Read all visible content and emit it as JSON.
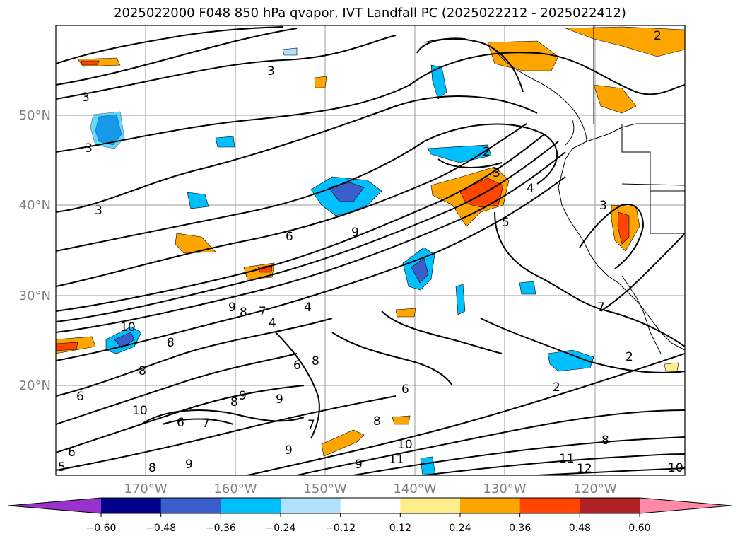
{
  "title": "2025022000 F048 850 hPa qvapor, IVT Landfall PC (2025022212 - 2025022412)",
  "lat_labels": [
    "50°N",
    "40°N",
    "30°N",
    "20°N"
  ],
  "lon_labels": [
    "170°W",
    "160°W",
    "150°W",
    "140°W",
    "130°W",
    "120°W"
  ],
  "colorbar": {
    "ticks": [
      "−0.60",
      "−0.48",
      "−0.36",
      "−0.24",
      "−0.12",
      "0.12",
      "0.24",
      "0.36",
      "0.48",
      "0.60"
    ],
    "colors": [
      "#9932cc",
      "#00008b",
      "#3a5fcd",
      "#00bfff",
      "#b0e2ff",
      "#ffffff",
      "#ffec8b",
      "#ffa500",
      "#ff4500",
      "#b22222",
      "#ff89a8"
    ]
  },
  "contour_labels": [
    "3",
    "3",
    "3",
    "3",
    "2",
    "2",
    "2",
    "3",
    "3",
    "4",
    "5",
    "6",
    "9",
    "9",
    "8",
    "7",
    "4",
    "4",
    "10",
    "8",
    "8",
    "6",
    "8",
    "9",
    "6",
    "8",
    "9",
    "9",
    "7",
    "10",
    "11",
    "11",
    "12",
    "10",
    "8",
    "2",
    "7",
    "6",
    "6",
    "5",
    "8",
    "9",
    "7",
    "8",
    "10",
    "9",
    "6"
  ]
}
